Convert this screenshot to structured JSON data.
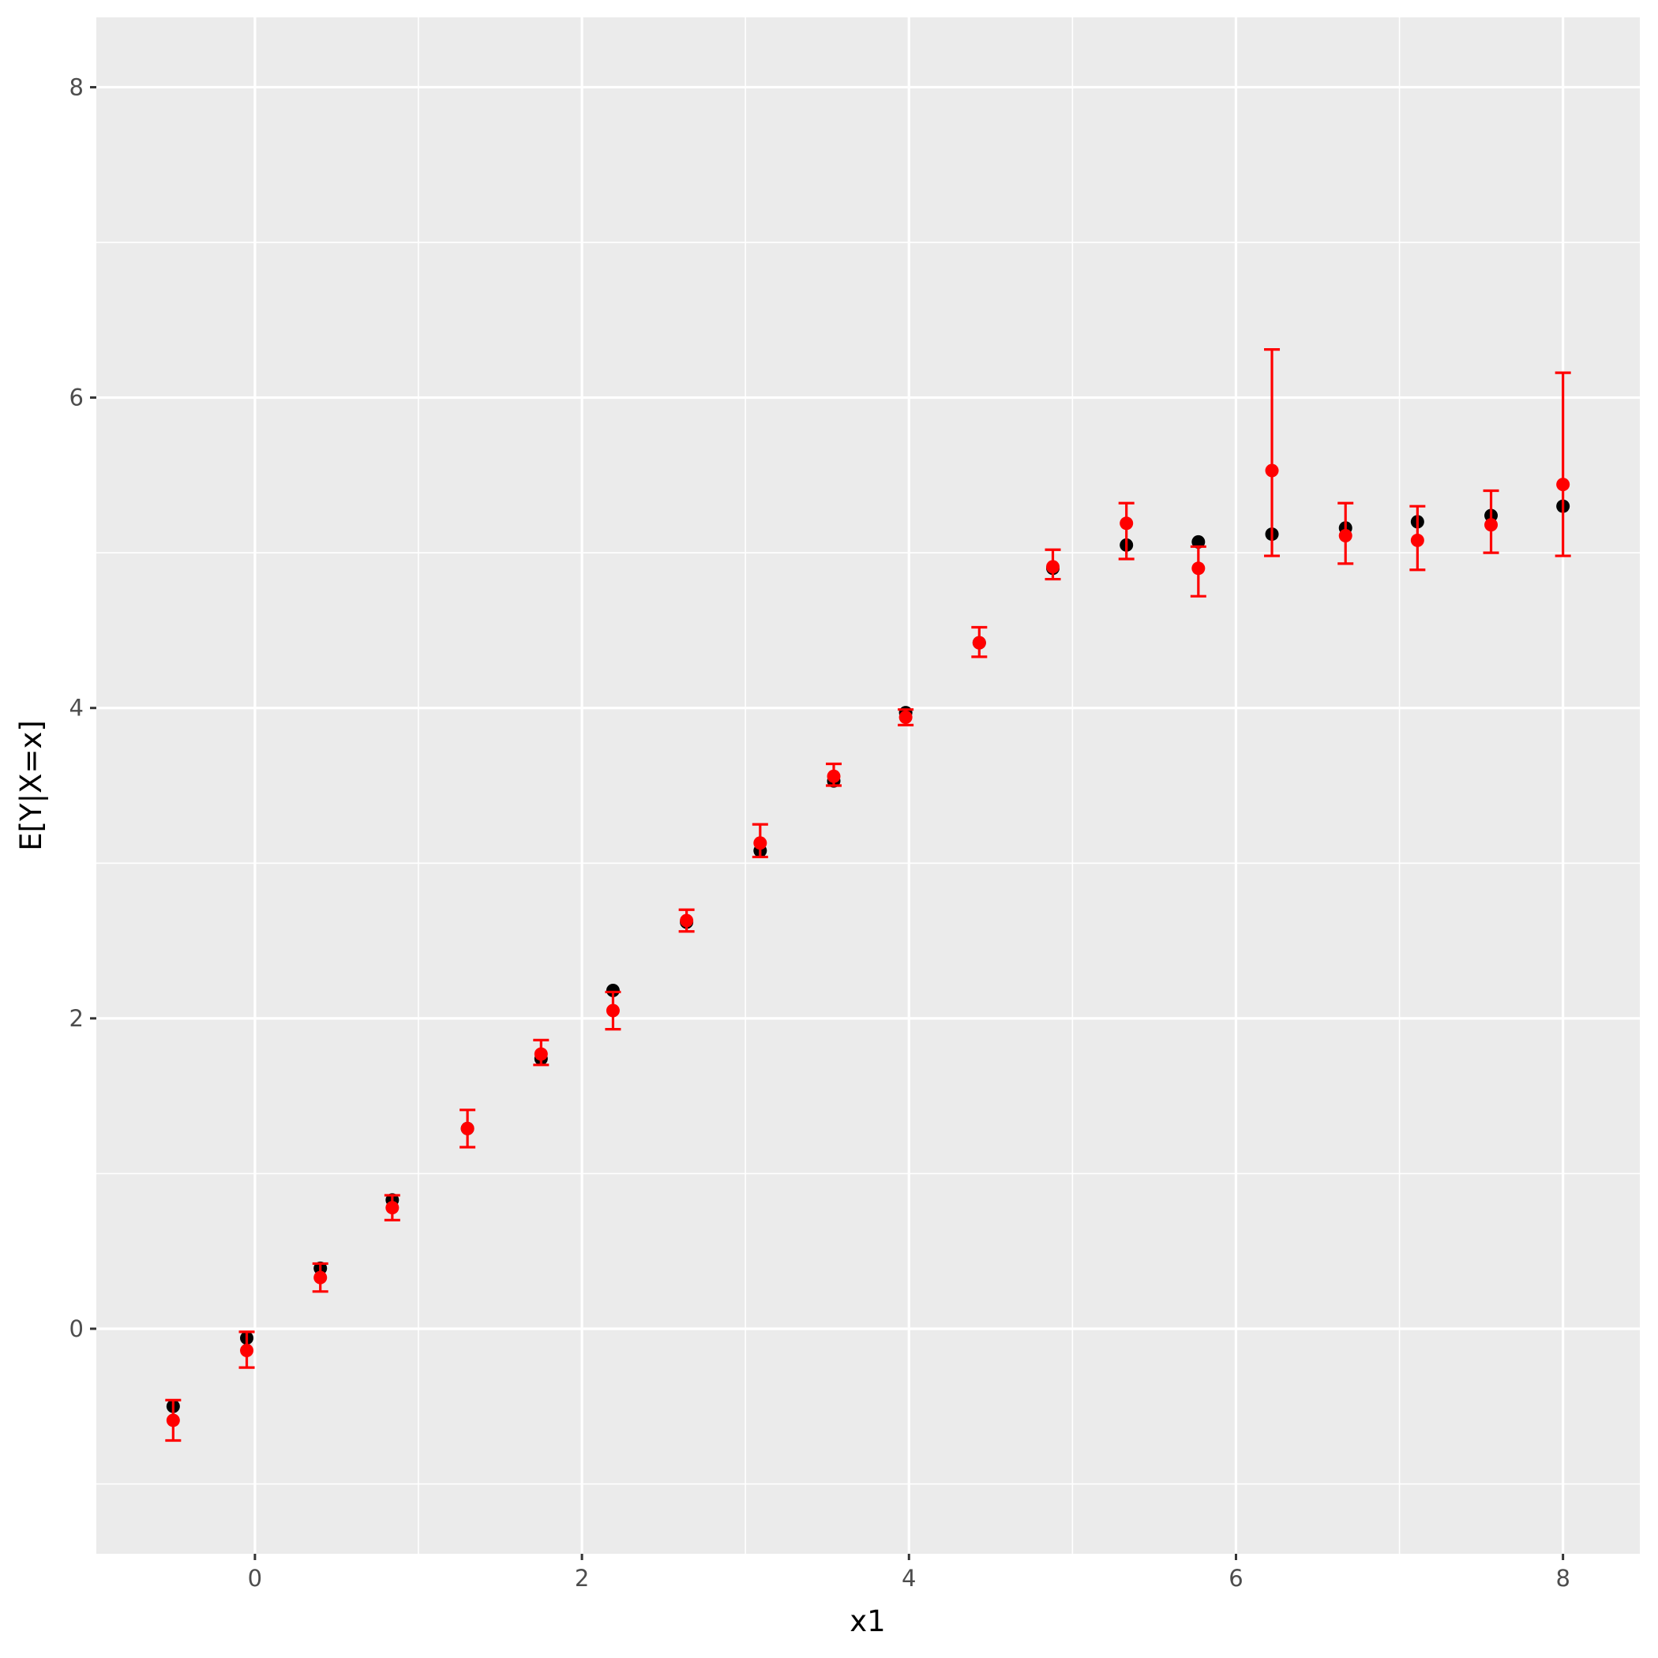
{
  "chart_data": {
    "type": "scatter",
    "xlabel": "x1",
    "ylabel": "E[Y|X=x]",
    "xlim": [
      -0.97,
      8.47
    ],
    "ylim": [
      -1.45,
      8.45
    ],
    "x_ticks": [
      0,
      2,
      4,
      6,
      8
    ],
    "y_ticks": [
      0,
      2,
      4,
      6,
      8
    ],
    "grid": true,
    "legend": "none",
    "colors": {
      "panel": "#ebebeb",
      "grid": "#ffffff",
      "true_points": "#000000",
      "estimate": "#ff0000"
    },
    "x": [
      -0.5,
      -0.05,
      0.4,
      0.84,
      1.3,
      1.75,
      2.19,
      2.64,
      3.09,
      3.54,
      3.98,
      4.43,
      4.88,
      5.33,
      5.77,
      6.22,
      6.67,
      7.11,
      7.56,
      8.0
    ],
    "series": [
      {
        "values": [
          -0.5,
          -0.06,
          0.39,
          0.83,
          1.29,
          1.74,
          2.18,
          2.62,
          3.08,
          3.53,
          3.97,
          4.42,
          4.9,
          5.05,
          5.07,
          5.12,
          5.16,
          5.2,
          5.24,
          5.3
        ]
      },
      {
        "values": [
          -0.59,
          -0.14,
          0.33,
          0.78,
          1.29,
          1.77,
          2.05,
          2.63,
          3.13,
          3.56,
          3.94,
          4.42,
          4.91,
          5.19,
          4.9,
          5.53,
          5.11,
          5.08,
          5.18,
          5.44
        ],
        "lower": [
          -0.72,
          -0.25,
          0.24,
          0.7,
          1.17,
          1.7,
          1.93,
          2.56,
          3.04,
          3.5,
          3.89,
          4.33,
          4.83,
          4.96,
          4.72,
          4.98,
          4.93,
          4.89,
          5.0,
          4.98
        ],
        "upper": [
          -0.46,
          -0.02,
          0.42,
          0.86,
          1.41,
          1.86,
          2.17,
          2.7,
          3.25,
          3.64,
          3.99,
          4.52,
          5.02,
          5.32,
          5.04,
          6.31,
          5.32,
          5.3,
          5.4,
          6.16
        ]
      }
    ]
  }
}
